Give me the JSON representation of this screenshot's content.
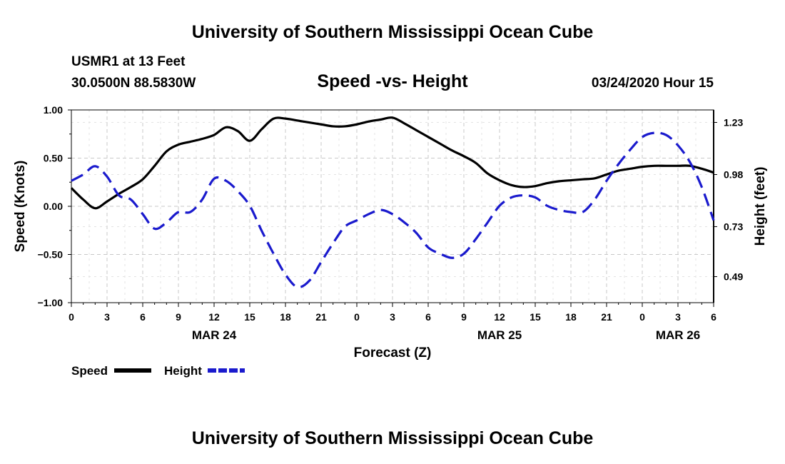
{
  "header": {
    "title": "University of Southern Mississippi Ocean Cube",
    "station": "USMR1 at 13 Feet",
    "location": "30.0500N 88.5830W",
    "chart_title": "Speed -vs- Height",
    "datetime": "03/24/2020 Hour 15"
  },
  "footer": {
    "title": "University of Southern Mississippi Ocean Cube"
  },
  "colors": {
    "speed": "#000000",
    "height": "#1a1acd",
    "grid": "#c8c8c8",
    "axis": "#000000"
  },
  "chart_data": {
    "type": "line",
    "title": "Speed -vs- Height",
    "xlabel": "Forecast (Z)",
    "ylabel": "Speed (Knots)",
    "y2label": "Height (feet)",
    "x_unit": "hours since 00Z MAR 24",
    "xlim": [
      0,
      54
    ],
    "ylim": [
      -1.0,
      1.0
    ],
    "y2lim": [
      0.365,
      1.29
    ],
    "x_tick_values": [
      0,
      3,
      6,
      9,
      12,
      15,
      18,
      21,
      24,
      27,
      30,
      33,
      36,
      39,
      42,
      45,
      48,
      51,
      54
    ],
    "x_tick_labels": [
      "0",
      "3",
      "6",
      "9",
      "12",
      "15",
      "18",
      "21",
      "0",
      "3",
      "6",
      "9",
      "12",
      "15",
      "18",
      "21",
      "0",
      "3",
      "6"
    ],
    "y_ticks": [
      {
        "value": 1.0,
        "label": "1.00"
      },
      {
        "value": 0.5,
        "label": "0.50"
      },
      {
        "value": 0.0,
        "label": "0.00"
      },
      {
        "value": -0.5,
        "label": "−0.50"
      },
      {
        "value": -1.0,
        "label": "−1.00"
      }
    ],
    "y2_ticks": [
      {
        "value": 1.23,
        "label": "1.23"
      },
      {
        "value": 0.98,
        "label": "0.98"
      },
      {
        "value": 0.73,
        "label": "0.73"
      },
      {
        "value": 0.49,
        "label": "0.49"
      }
    ],
    "date_labels": [
      {
        "x": 12,
        "label": "MAR 24"
      },
      {
        "x": 36,
        "label": "MAR 25"
      },
      {
        "x": 51,
        "label": "MAR 26"
      }
    ],
    "legend": {
      "position": "bottom-left",
      "entries": [
        "Speed",
        "Height"
      ]
    },
    "grid": true,
    "series": [
      {
        "name": "Speed",
        "axis": "left",
        "style": "solid",
        "x": [
          0,
          1,
          2,
          3,
          4,
          5,
          6,
          7,
          8,
          9,
          10,
          11,
          12,
          13,
          14,
          15,
          16,
          17,
          18,
          19,
          20,
          21,
          22,
          23,
          24,
          25,
          26,
          27,
          28,
          29,
          30,
          31,
          32,
          33,
          34,
          35,
          36,
          37,
          38,
          39,
          40,
          41,
          42,
          43,
          44,
          45,
          46,
          47,
          48,
          49,
          50,
          51,
          52,
          53,
          54
        ],
        "values": [
          0.19,
          0.07,
          -0.02,
          0.05,
          0.13,
          0.2,
          0.28,
          0.42,
          0.57,
          0.64,
          0.67,
          0.7,
          0.74,
          0.82,
          0.78,
          0.68,
          0.8,
          0.91,
          0.91,
          0.89,
          0.87,
          0.85,
          0.83,
          0.83,
          0.85,
          0.88,
          0.9,
          0.92,
          0.86,
          0.79,
          0.72,
          0.65,
          0.58,
          0.52,
          0.45,
          0.34,
          0.27,
          0.22,
          0.2,
          0.21,
          0.24,
          0.26,
          0.27,
          0.28,
          0.29,
          0.33,
          0.37,
          0.39,
          0.41,
          0.42,
          0.42,
          0.42,
          0.42,
          0.39,
          0.35
        ]
      },
      {
        "name": "Height",
        "axis": "right",
        "style": "dashed",
        "x": [
          0,
          1,
          2,
          3,
          4,
          5,
          6,
          7,
          8,
          9,
          10,
          11,
          12,
          13,
          14,
          15,
          16,
          17,
          18,
          19,
          20,
          21,
          22,
          23,
          24,
          25,
          26,
          27,
          28,
          29,
          30,
          31,
          32,
          33,
          34,
          35,
          36,
          37,
          38,
          39,
          40,
          41,
          42,
          43,
          44,
          45,
          46,
          47,
          48,
          49,
          50,
          51,
          52,
          53,
          54
        ],
        "values": [
          0.95,
          0.98,
          1.02,
          0.97,
          0.88,
          0.86,
          0.79,
          0.72,
          0.75,
          0.8,
          0.8,
          0.86,
          0.96,
          0.95,
          0.9,
          0.83,
          0.71,
          0.6,
          0.5,
          0.44,
          0.47,
          0.56,
          0.65,
          0.73,
          0.76,
          0.79,
          0.81,
          0.79,
          0.75,
          0.7,
          0.63,
          0.6,
          0.58,
          0.6,
          0.67,
          0.75,
          0.83,
          0.87,
          0.88,
          0.87,
          0.83,
          0.81,
          0.8,
          0.8,
          0.86,
          0.95,
          1.03,
          1.1,
          1.16,
          1.18,
          1.17,
          1.12,
          1.04,
          0.92,
          0.76
        ]
      }
    ]
  }
}
